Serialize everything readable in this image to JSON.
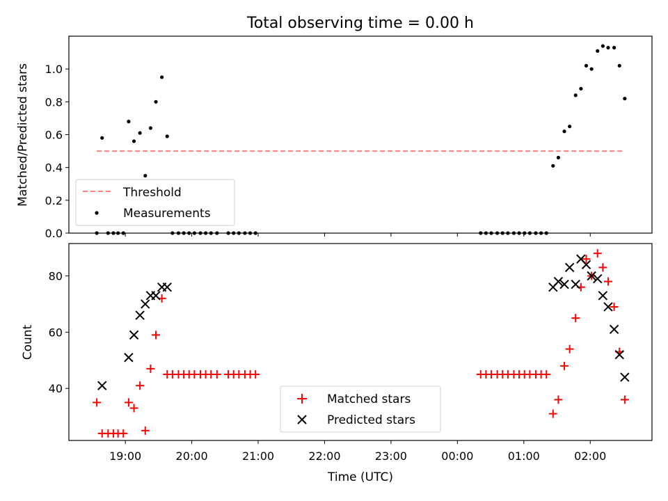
{
  "title": "Total observing time = 0.00 h",
  "colors": {
    "measurement": "#000000",
    "threshold": "#ff7f7f",
    "matched": "#ff0000",
    "predicted": "#000000"
  },
  "x_axis": {
    "label": "Time (UTC)",
    "ticks": [
      {
        "t": 19.0,
        "label": "19:00"
      },
      {
        "t": 20.0,
        "label": "20:00"
      },
      {
        "t": 21.0,
        "label": "21:00"
      },
      {
        "t": 22.0,
        "label": "22:00"
      },
      {
        "t": 23.0,
        "label": "23:00"
      },
      {
        "t": 24.0,
        "label": "00:00"
      },
      {
        "t": 25.0,
        "label": "01:00"
      },
      {
        "t": 26.0,
        "label": "02:00"
      }
    ],
    "range": [
      18.15,
      26.93
    ]
  },
  "chart_data": [
    {
      "type": "scatter",
      "ylabel": "Matched/Predicted stars",
      "ylim": [
        0,
        1.2
      ],
      "yticks": [
        {
          "v": 0.0,
          "label": "0.0"
        },
        {
          "v": 0.2,
          "label": "0.2"
        },
        {
          "v": 0.4,
          "label": "0.4"
        },
        {
          "v": 0.6,
          "label": "0.6"
        },
        {
          "v": 0.8,
          "label": "0.8"
        },
        {
          "v": 1.0,
          "label": "1.0"
        }
      ],
      "threshold": {
        "name": "Threshold",
        "value": 0.5,
        "x_start": 18.57,
        "x_end": 26.48
      },
      "series": [
        {
          "name": "Measurements",
          "x": [
            18.57,
            18.65,
            18.74,
            18.82,
            18.89,
            18.97,
            19.05,
            19.13,
            19.22,
            19.3,
            19.38,
            19.46,
            19.55,
            19.63,
            19.71,
            19.8,
            19.88,
            19.96,
            20.04,
            20.13,
            20.21,
            20.29,
            20.38,
            20.55,
            20.63,
            20.71,
            20.8,
            20.88,
            20.96,
            24.35,
            24.43,
            24.51,
            24.6,
            24.68,
            24.76,
            24.85,
            24.93,
            25.01,
            25.09,
            25.18,
            25.26,
            25.34,
            25.44,
            25.52,
            25.61,
            25.69,
            25.78,
            25.86,
            25.94,
            26.02,
            26.11,
            26.19,
            26.27,
            26.36,
            26.44,
            26.52
          ],
          "y": [
            0,
            0.58,
            0,
            0,
            0,
            0,
            0.68,
            0.56,
            0.61,
            0.35,
            0.64,
            0.8,
            0.95,
            0.59,
            0,
            0,
            0,
            0,
            0,
            0,
            0,
            0,
            0,
            0,
            0,
            0,
            0,
            0,
            0,
            0,
            0,
            0,
            0,
            0,
            0,
            0,
            0,
            0,
            0,
            0,
            0,
            0,
            0.41,
            0.46,
            0.62,
            0.65,
            0.84,
            0.88,
            1.02,
            1.0,
            1.11,
            1.14,
            1.13,
            1.13,
            1.02,
            0.82
          ]
        }
      ]
    },
    {
      "type": "scatter",
      "ylabel": "Count",
      "ylim": [
        21.5,
        91.5
      ],
      "yticks": [
        {
          "v": 40,
          "label": "40"
        },
        {
          "v": 60,
          "label": "60"
        },
        {
          "v": 80,
          "label": "80"
        }
      ],
      "series": [
        {
          "name": "Matched stars",
          "marker": "plus",
          "x": [
            18.57,
            18.65,
            18.74,
            18.82,
            18.89,
            18.97,
            19.05,
            19.13,
            19.22,
            19.3,
            19.38,
            19.46,
            19.55,
            19.63,
            19.71,
            19.8,
            19.88,
            19.96,
            20.04,
            20.13,
            20.21,
            20.29,
            20.38,
            20.55,
            20.63,
            20.71,
            20.8,
            20.88,
            20.96,
            24.35,
            24.43,
            24.51,
            24.6,
            24.68,
            24.76,
            24.85,
            24.93,
            25.01,
            25.09,
            25.18,
            25.26,
            25.34,
            25.44,
            25.52,
            25.61,
            25.69,
            25.78,
            25.86,
            25.94,
            26.02,
            26.11,
            26.19,
            26.27,
            26.36,
            26.44,
            26.52
          ],
          "y": [
            35,
            24,
            24,
            24,
            24,
            24,
            35,
            33,
            41,
            25,
            47,
            59,
            72,
            45,
            45,
            45,
            45,
            45,
            45,
            45,
            45,
            45,
            45,
            45,
            45,
            45,
            45,
            45,
            45,
            45,
            45,
            45,
            45,
            45,
            45,
            45,
            45,
            45,
            45,
            45,
            45,
            45,
            31,
            36,
            48,
            54,
            65,
            76,
            86,
            80,
            88,
            83,
            78,
            69,
            53,
            36
          ]
        },
        {
          "name": "Predicted stars",
          "marker": "x",
          "x": [
            18.65,
            19.05,
            19.13,
            19.22,
            19.3,
            19.38,
            19.46,
            19.55,
            19.63,
            25.44,
            25.52,
            25.61,
            25.69,
            25.78,
            25.86,
            25.94,
            26.02,
            26.11,
            26.19,
            26.27,
            26.36,
            26.44,
            26.52
          ],
          "y": [
            41,
            51,
            59,
            66,
            70,
            73,
            73,
            76,
            76,
            76,
            78,
            77,
            83,
            77,
            86,
            84,
            80,
            79,
            73,
            69,
            61,
            52,
            44
          ]
        }
      ]
    }
  ]
}
